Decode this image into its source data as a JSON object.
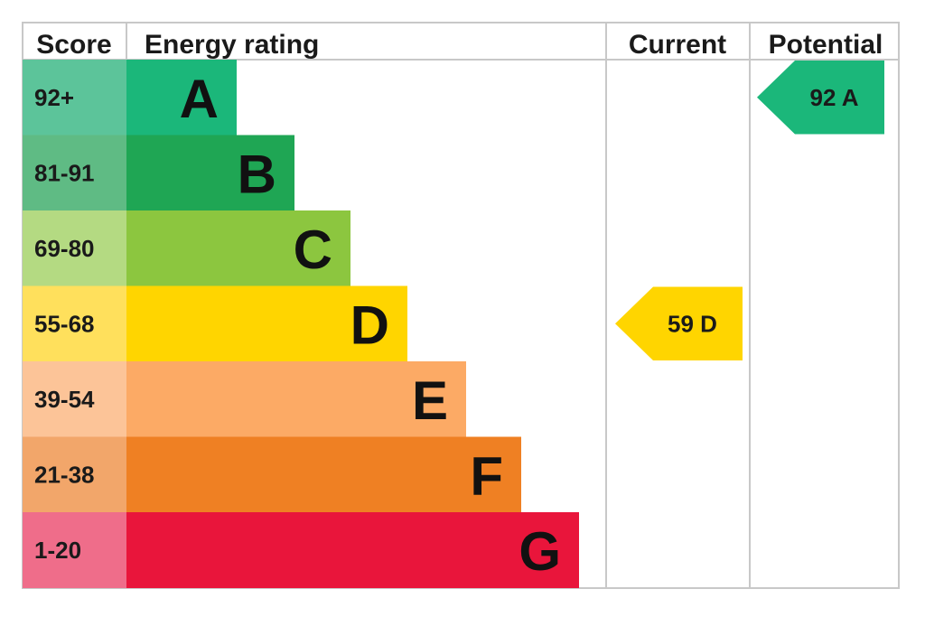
{
  "headers": {
    "score": "Score",
    "energy_rating": "Energy rating",
    "current": "Current",
    "potential": "Potential"
  },
  "chart_data": {
    "type": "bar",
    "bands": [
      {
        "letter": "A",
        "range": "92+",
        "color": "#1bb77a",
        "score_color": "#5cc49a"
      },
      {
        "letter": "B",
        "range": "81-91",
        "color": "#1fa654",
        "score_color": "#5fbb84"
      },
      {
        "letter": "C",
        "range": "69-80",
        "color": "#8cc63f",
        "score_color": "#b4da82"
      },
      {
        "letter": "D",
        "range": "55-68",
        "color": "#ffd500",
        "score_color": "#ffe05c"
      },
      {
        "letter": "E",
        "range": "39-54",
        "color": "#fcaa65",
        "score_color": "#fcc498"
      },
      {
        "letter": "F",
        "range": "21-38",
        "color": "#ef8023",
        "score_color": "#f2a66a"
      },
      {
        "letter": "G",
        "range": "1-20",
        "color": "#e9153b",
        "score_color": "#ef6d8a"
      }
    ],
    "current": {
      "score": 59,
      "letter": "D",
      "label": "59  D",
      "color": "#ffd500"
    },
    "potential": {
      "score": 92,
      "letter": "A",
      "label": "92  A",
      "color": "#1bb77a"
    }
  }
}
